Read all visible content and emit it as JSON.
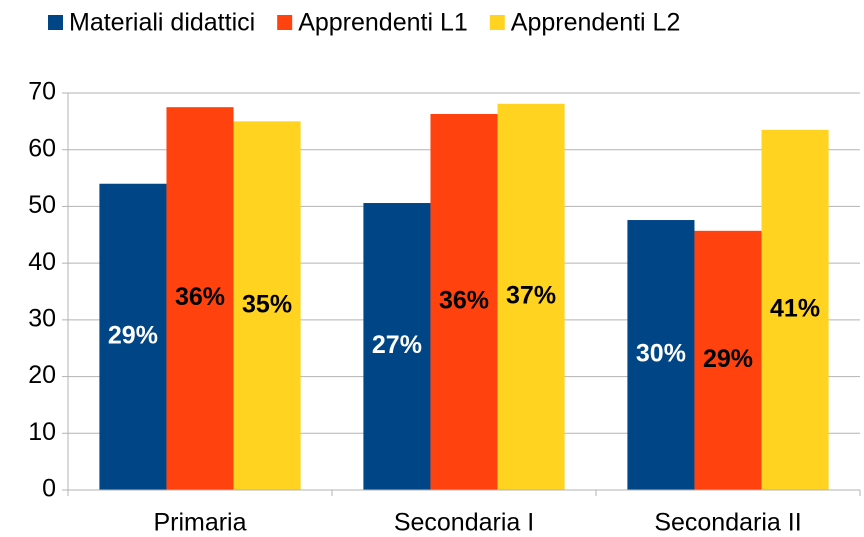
{
  "chart_data": {
    "type": "bar",
    "categories": [
      "Primaria",
      "Secondaria I",
      "Secondaria II"
    ],
    "series": [
      {
        "name": "Materiali didattici",
        "color": "#004586",
        "label_color": "#ffffff",
        "values": [
          54,
          50.6,
          47.6
        ],
        "share_labels": [
          "29%",
          "27%",
          "30%"
        ]
      },
      {
        "name": "Apprendenti L1",
        "color": "#ff420e",
        "label_color": "#000000",
        "values": [
          67.5,
          66.3,
          45.7
        ],
        "share_labels": [
          "36%",
          "36%",
          "29%"
        ]
      },
      {
        "name": "Apprendenti L2",
        "color": "#ffd320",
        "label_color": "#000000",
        "values": [
          65,
          68.1,
          63.5
        ],
        "share_labels": [
          "35%",
          "37%",
          "41%"
        ]
      }
    ],
    "ylim": [
      0,
      70
    ],
    "yticks": [
      0,
      10,
      20,
      30,
      40,
      50,
      60,
      70
    ],
    "grid": true,
    "legend": "top"
  }
}
